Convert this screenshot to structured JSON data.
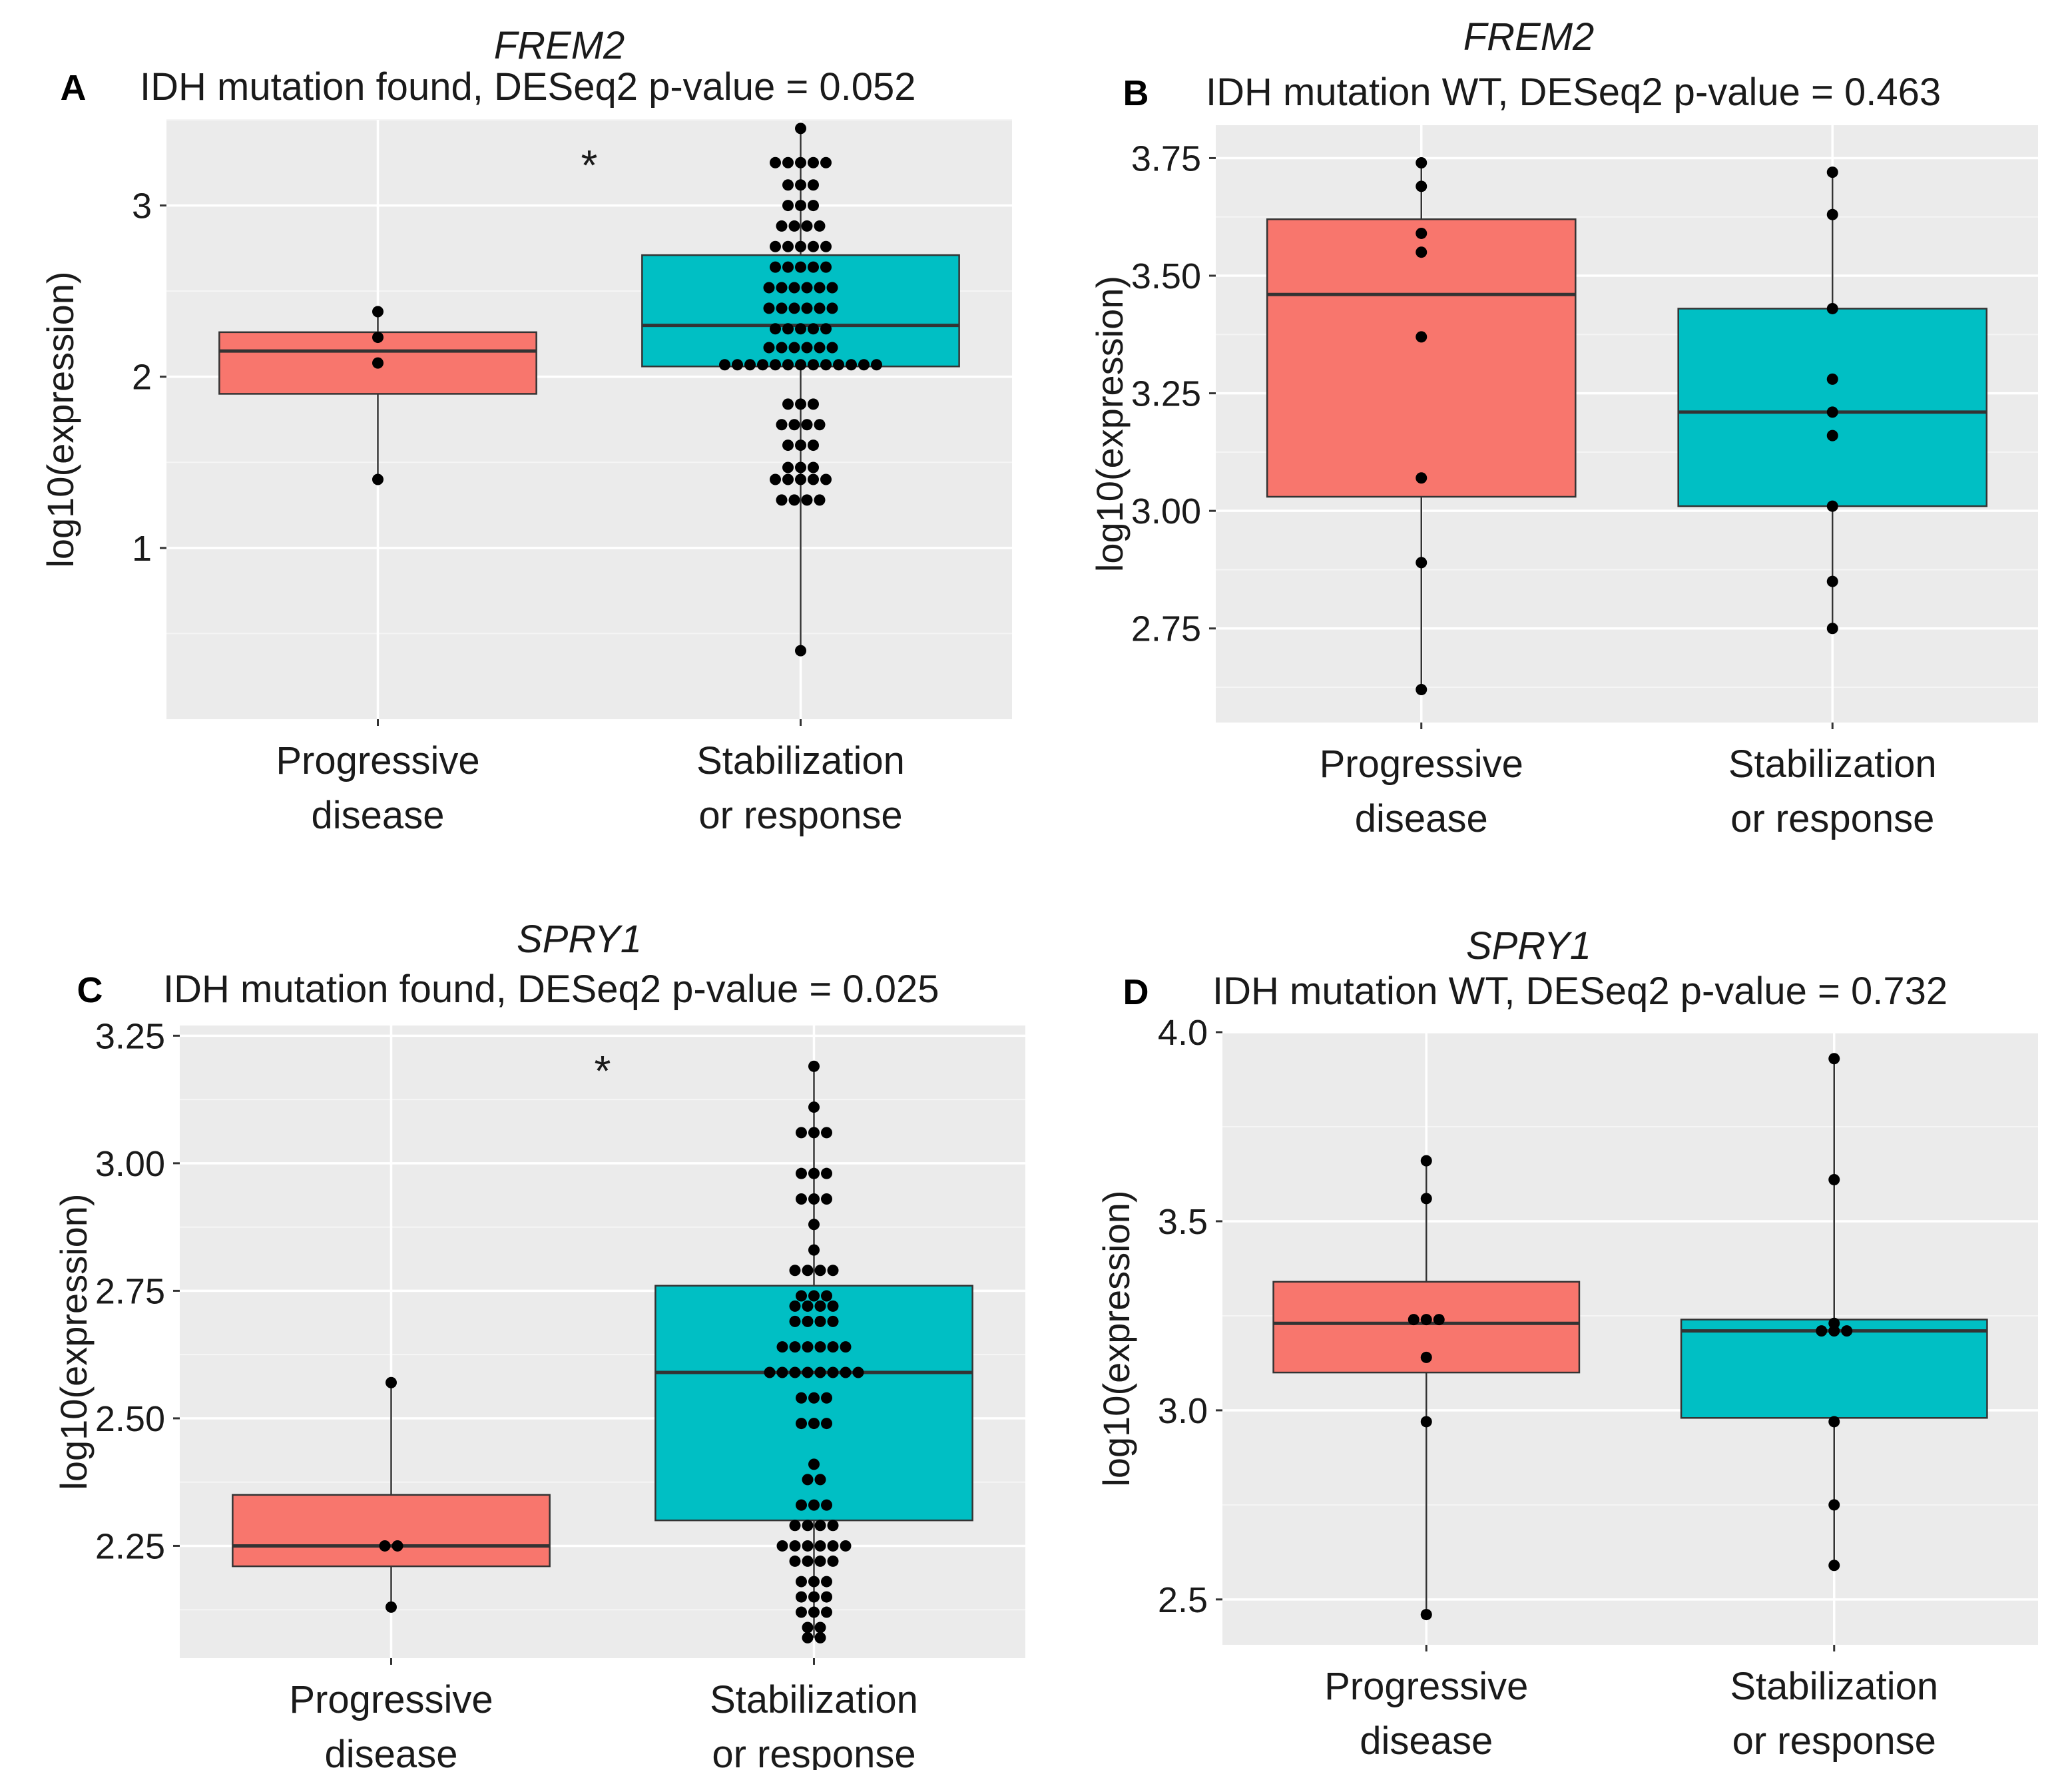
{
  "colors": {
    "progressive": "#F8766D",
    "stable": "#00BFC4",
    "panel_bg": "#EBEBEB",
    "grid_major": "#FFFFFF",
    "grid_minor": "#F5F5F5",
    "point": "#000000",
    "line": "#333333"
  },
  "chart_data": [
    {
      "panel": "A",
      "type": "boxplot",
      "gene": "FREM2",
      "subtitle": "IDH mutation found, DESeq2 p-value = 0.052",
      "ylabel": "log10(expression)",
      "ylim": [
        0,
        3.5
      ],
      "yticks": [
        1,
        2,
        3
      ],
      "ytick_labels": [
        "1",
        "2",
        "3"
      ],
      "significance": "*",
      "categories": [
        {
          "label1": "Progressive",
          "label2": "disease",
          "color_key": "progressive",
          "box": {
            "min": 1.4,
            "q1": 1.9,
            "median": 2.15,
            "q3": 2.26,
            "max": 2.38
          },
          "points": [
            2.38,
            2.23,
            2.08,
            1.4
          ]
        },
        {
          "label1": "Stabilization",
          "label2": "or response",
          "color_key": "stable",
          "box": {
            "min": 0.4,
            "q1": 2.06,
            "median": 2.3,
            "q3": 2.71,
            "max": 3.45
          },
          "points": [
            3.45,
            3.25,
            3.25,
            3.25,
            3.25,
            3.25,
            3.12,
            3.12,
            3.12,
            3.0,
            3.0,
            3.0,
            2.88,
            2.88,
            2.88,
            2.88,
            2.76,
            2.76,
            2.76,
            2.76,
            2.76,
            2.64,
            2.64,
            2.64,
            2.64,
            2.64,
            2.52,
            2.52,
            2.52,
            2.52,
            2.52,
            2.52,
            2.4,
            2.4,
            2.4,
            2.4,
            2.4,
            2.4,
            2.28,
            2.28,
            2.28,
            2.28,
            2.28,
            2.17,
            2.17,
            2.17,
            2.17,
            2.17,
            2.17,
            2.07,
            2.07,
            2.07,
            2.07,
            2.07,
            2.07,
            2.07,
            2.07,
            2.07,
            2.07,
            2.07,
            2.07,
            2.07,
            1.84,
            1.84,
            1.84,
            1.72,
            1.72,
            1.72,
            1.72,
            1.6,
            1.6,
            1.6,
            1.47,
            1.47,
            1.47,
            1.4,
            1.4,
            1.4,
            1.4,
            1.4,
            1.28,
            1.28,
            1.28,
            1.28,
            0.4
          ]
        }
      ]
    },
    {
      "panel": "B",
      "type": "boxplot",
      "gene": "FREM2",
      "subtitle": "IDH mutation WT, DESeq2 p-value = 0.463",
      "ylabel": "log10(expression)",
      "ylim": [
        2.55,
        3.82
      ],
      "yticks": [
        2.75,
        3.0,
        3.25,
        3.5,
        3.75
      ],
      "ytick_labels": [
        "2.75",
        "3.00",
        "3.25",
        "3.50",
        "3.75"
      ],
      "significance": "",
      "categories": [
        {
          "label1": "Progressive",
          "label2": "disease",
          "color_key": "progressive",
          "box": {
            "min": 2.62,
            "q1": 3.03,
            "median": 3.46,
            "q3": 3.62,
            "max": 3.74
          },
          "points": [
            3.74,
            3.69,
            3.59,
            3.55,
            3.37,
            3.07,
            2.89,
            2.62
          ]
        },
        {
          "label1": "Stabilization",
          "label2": "or response",
          "color_key": "stable",
          "box": {
            "min": 2.75,
            "q1": 3.01,
            "median": 3.21,
            "q3": 3.43,
            "max": 3.72
          },
          "points": [
            3.72,
            3.63,
            3.43,
            3.28,
            3.21,
            3.16,
            3.01,
            2.85,
            2.75
          ]
        }
      ]
    },
    {
      "panel": "C",
      "type": "boxplot",
      "gene": "SPRY1",
      "subtitle": "IDH mutation found, DESeq2 p-value = 0.025",
      "ylabel": "log10(expression)",
      "ylim": [
        2.03,
        3.27
      ],
      "yticks": [
        2.25,
        2.5,
        2.75,
        3.0,
        3.25
      ],
      "ytick_labels": [
        "2.25",
        "2.50",
        "2.75",
        "3.00",
        "3.25"
      ],
      "significance": "*",
      "categories": [
        {
          "label1": "Progressive",
          "label2": "disease",
          "color_key": "progressive",
          "box": {
            "min": 2.13,
            "q1": 2.21,
            "median": 2.25,
            "q3": 2.35,
            "max": 2.57
          },
          "points": [
            2.57,
            2.25,
            2.25,
            2.13
          ]
        },
        {
          "label1": "Stabilization",
          "label2": "or response",
          "color_key": "stable",
          "box": {
            "min": 2.07,
            "q1": 2.3,
            "median": 2.59,
            "q3": 2.76,
            "max": 3.19
          },
          "points": [
            3.19,
            3.11,
            3.06,
            3.06,
            3.06,
            2.98,
            2.98,
            2.98,
            2.93,
            2.93,
            2.93,
            2.88,
            2.83,
            2.79,
            2.79,
            2.79,
            2.79,
            2.74,
            2.74,
            2.74,
            2.72,
            2.72,
            2.72,
            2.72,
            2.69,
            2.69,
            2.69,
            2.69,
            2.64,
            2.64,
            2.64,
            2.64,
            2.64,
            2.64,
            2.59,
            2.59,
            2.59,
            2.59,
            2.59,
            2.59,
            2.59,
            2.59,
            2.54,
            2.54,
            2.54,
            2.49,
            2.49,
            2.49,
            2.41,
            2.38,
            2.38,
            2.33,
            2.33,
            2.33,
            2.29,
            2.29,
            2.29,
            2.29,
            2.25,
            2.25,
            2.25,
            2.25,
            2.25,
            2.25,
            2.22,
            2.22,
            2.22,
            2.22,
            2.18,
            2.18,
            2.18,
            2.15,
            2.15,
            2.15,
            2.12,
            2.12,
            2.12,
            2.09,
            2.09,
            2.07,
            2.07
          ]
        }
      ]
    },
    {
      "panel": "D",
      "type": "boxplot",
      "gene": "SPRY1",
      "subtitle": "IDH mutation WT, DESeq2 p-value = 0.732",
      "ylabel": "log10(expression)",
      "ylim": [
        2.38,
        4.0
      ],
      "yticks": [
        2.5,
        3.0,
        3.5,
        4.0
      ],
      "ytick_labels": [
        "2.5",
        "3.0",
        "3.5",
        "4.0"
      ],
      "significance": "",
      "categories": [
        {
          "label1": "Progressive",
          "label2": "disease",
          "color_key": "progressive",
          "box": {
            "min": 2.46,
            "q1": 3.1,
            "median": 3.23,
            "q3": 3.34,
            "max": 3.66
          },
          "points": [
            3.66,
            3.56,
            3.24,
            3.24,
            3.24,
            3.14,
            2.97,
            2.46
          ]
        },
        {
          "label1": "Stabilization",
          "label2": "or response",
          "color_key": "stable",
          "box": {
            "min": 2.59,
            "q1": 2.98,
            "median": 3.21,
            "q3": 3.24,
            "max": 3.93
          },
          "points": [
            3.93,
            3.61,
            3.23,
            3.21,
            3.21,
            3.21,
            2.97,
            2.75,
            2.59
          ]
        }
      ]
    }
  ]
}
